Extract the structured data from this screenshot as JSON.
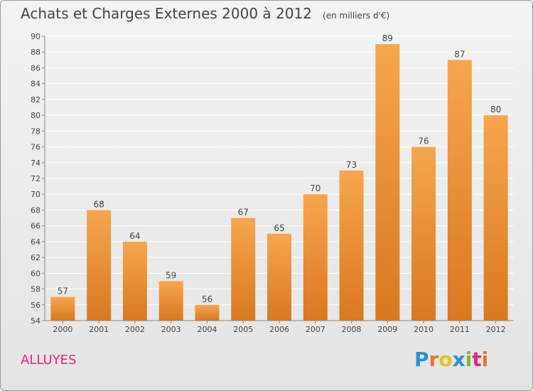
{
  "header": {
    "title": "Achats et Charges Externes 2000 à 2012",
    "unit": "(en milliers d'€)"
  },
  "place": "ALLUYES",
  "brand": {
    "text": "Proxiti",
    "letter_colors": [
      "#2a8fd6",
      "#e8732a",
      "#e2c51b",
      "#2a8fd6",
      "#79b83b",
      "#dd2a7b",
      "#e8732a"
    ]
  },
  "colors": {
    "bar_light": "#f7a64e",
    "bar_dark": "#d9781f",
    "grid": "#ffffff",
    "axis_text": "#444444"
  },
  "chart_data": {
    "type": "bar",
    "categories": [
      "2000",
      "2001",
      "2002",
      "2003",
      "2004",
      "2005",
      "2006",
      "2007",
      "2008",
      "2009",
      "2010",
      "2011",
      "2012"
    ],
    "values": [
      57,
      68,
      64,
      59,
      56,
      67,
      65,
      70,
      73,
      89,
      76,
      87,
      80
    ],
    "ylim": [
      54,
      90
    ],
    "yticks": [
      54,
      56,
      58,
      60,
      62,
      64,
      66,
      68,
      70,
      72,
      74,
      76,
      78,
      80,
      82,
      84,
      86,
      88,
      90
    ],
    "grid": true,
    "data_labels": true
  }
}
